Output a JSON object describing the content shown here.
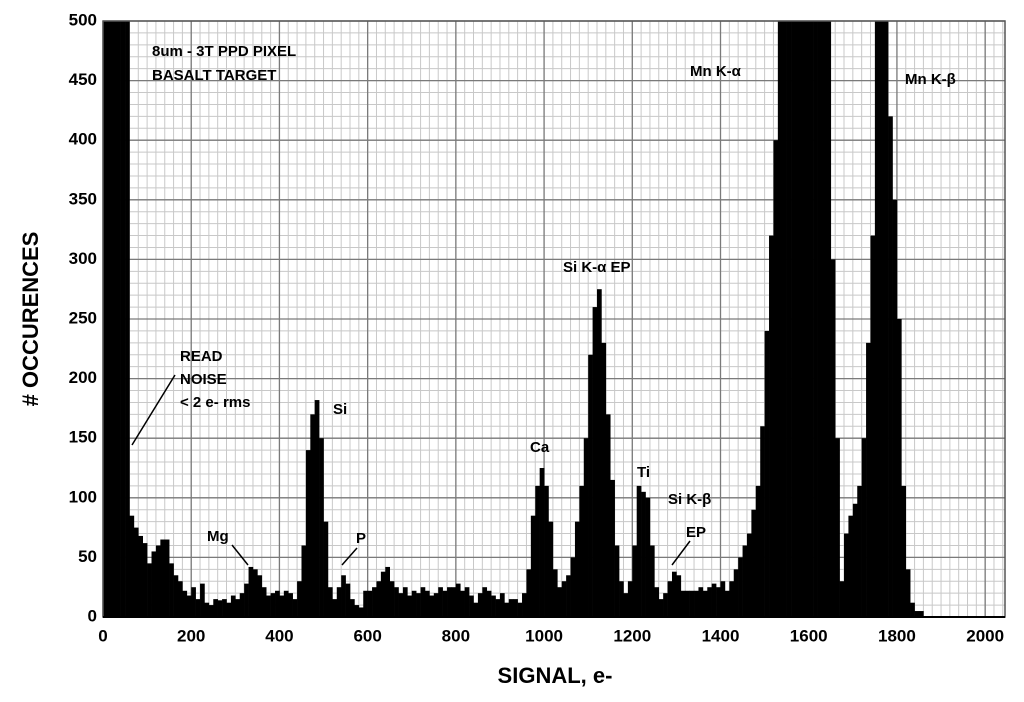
{
  "chart_data": {
    "type": "histogram",
    "title": "8um - 3T PPD PIXEL",
    "subtitle": "BASALT TARGET",
    "x_label": "SIGNAL, e-",
    "y_label": "# OCCURENCES",
    "color": "#000000",
    "grid": true,
    "xlim": [
      0,
      2045
    ],
    "ylim": [
      0,
      500
    ],
    "xticks": [
      0,
      200,
      400,
      600,
      800,
      1000,
      1200,
      1400,
      1600,
      1800,
      2000
    ],
    "yticks": [
      0,
      50,
      100,
      150,
      200,
      250,
      300,
      350,
      400,
      450,
      500
    ],
    "annotations": [
      "Mn K-α",
      "Mn K-β",
      "Si K-α EP",
      "READ",
      "NOISE",
      "< 2 e- rms",
      "Si",
      "Ca",
      "Ti",
      "Si K-β",
      "EP",
      "Mg",
      "P"
    ],
    "bins": [
      0,
      10,
      20,
      30,
      40,
      50,
      60,
      70,
      80,
      90,
      100,
      110,
      120,
      130,
      140,
      150,
      160,
      170,
      180,
      190,
      200,
      210,
      220,
      230,
      240,
      250,
      260,
      270,
      280,
      290,
      300,
      310,
      320,
      330,
      340,
      350,
      360,
      370,
      380,
      390,
      400,
      410,
      420,
      430,
      440,
      450,
      460,
      470,
      480,
      490,
      500,
      510,
      520,
      530,
      540,
      550,
      560,
      570,
      580,
      590,
      600,
      610,
      620,
      630,
      640,
      650,
      660,
      670,
      680,
      690,
      700,
      710,
      720,
      730,
      740,
      750,
      760,
      770,
      780,
      790,
      800,
      810,
      820,
      830,
      840,
      850,
      860,
      870,
      880,
      890,
      900,
      910,
      920,
      930,
      940,
      950,
      960,
      970,
      980,
      990,
      1000,
      1010,
      1020,
      1030,
      1040,
      1050,
      1060,
      1070,
      1080,
      1090,
      1100,
      1110,
      1120,
      1130,
      1140,
      1150,
      1160,
      1170,
      1180,
      1190,
      1200,
      1210,
      1220,
      1230,
      1240,
      1250,
      1260,
      1270,
      1280,
      1290,
      1300,
      1310,
      1320,
      1330,
      1340,
      1350,
      1360,
      1370,
      1380,
      1390,
      1400,
      1410,
      1420,
      1430,
      1440,
      1450,
      1460,
      1470,
      1480,
      1490,
      1500,
      1510,
      1520,
      1530,
      1540,
      1550,
      1560,
      1570,
      1580,
      1590,
      1600,
      1610,
      1620,
      1630,
      1640,
      1650,
      1660,
      1670,
      1680,
      1690,
      1700,
      1710,
      1720,
      1730,
      1740,
      1750,
      1760,
      1770,
      1780,
      1790,
      1800,
      1810,
      1820,
      1830,
      1840,
      1850,
      1860
    ],
    "values": [
      500,
      500,
      500,
      500,
      500,
      500,
      85,
      75,
      68,
      62,
      45,
      55,
      60,
      65,
      65,
      45,
      35,
      30,
      22,
      18,
      25,
      15,
      28,
      12,
      10,
      15,
      14,
      15,
      12,
      18,
      15,
      20,
      28,
      42,
      40,
      35,
      25,
      18,
      20,
      22,
      18,
      22,
      20,
      15,
      30,
      60,
      140,
      170,
      182,
      150,
      80,
      25,
      15,
      25,
      35,
      28,
      15,
      10,
      8,
      22,
      22,
      25,
      30,
      38,
      42,
      30,
      25,
      20,
      25,
      18,
      22,
      20,
      25,
      22,
      18,
      20,
      25,
      22,
      25,
      25,
      28,
      22,
      25,
      18,
      12,
      20,
      25,
      22,
      18,
      15,
      20,
      12,
      15,
      15,
      12,
      20,
      40,
      85,
      110,
      125,
      110,
      80,
      40,
      25,
      30,
      35,
      50,
      80,
      110,
      150,
      220,
      260,
      275,
      230,
      170,
      115,
      60,
      30,
      20,
      30,
      60,
      110,
      105,
      100,
      60,
      25,
      15,
      20,
      30,
      38,
      35,
      22,
      22,
      22,
      22,
      25,
      22,
      25,
      28,
      25,
      30,
      22,
      30,
      40,
      50,
      60,
      70,
      90,
      110,
      160,
      240,
      320,
      400,
      500,
      500,
      500,
      500,
      500,
      500,
      500,
      500,
      500,
      500,
      500,
      500,
      300,
      150,
      30,
      70,
      85,
      95,
      110,
      150,
      230,
      320,
      500,
      500,
      500,
      420,
      350,
      250,
      110,
      40,
      12,
      5,
      5
    ]
  }
}
